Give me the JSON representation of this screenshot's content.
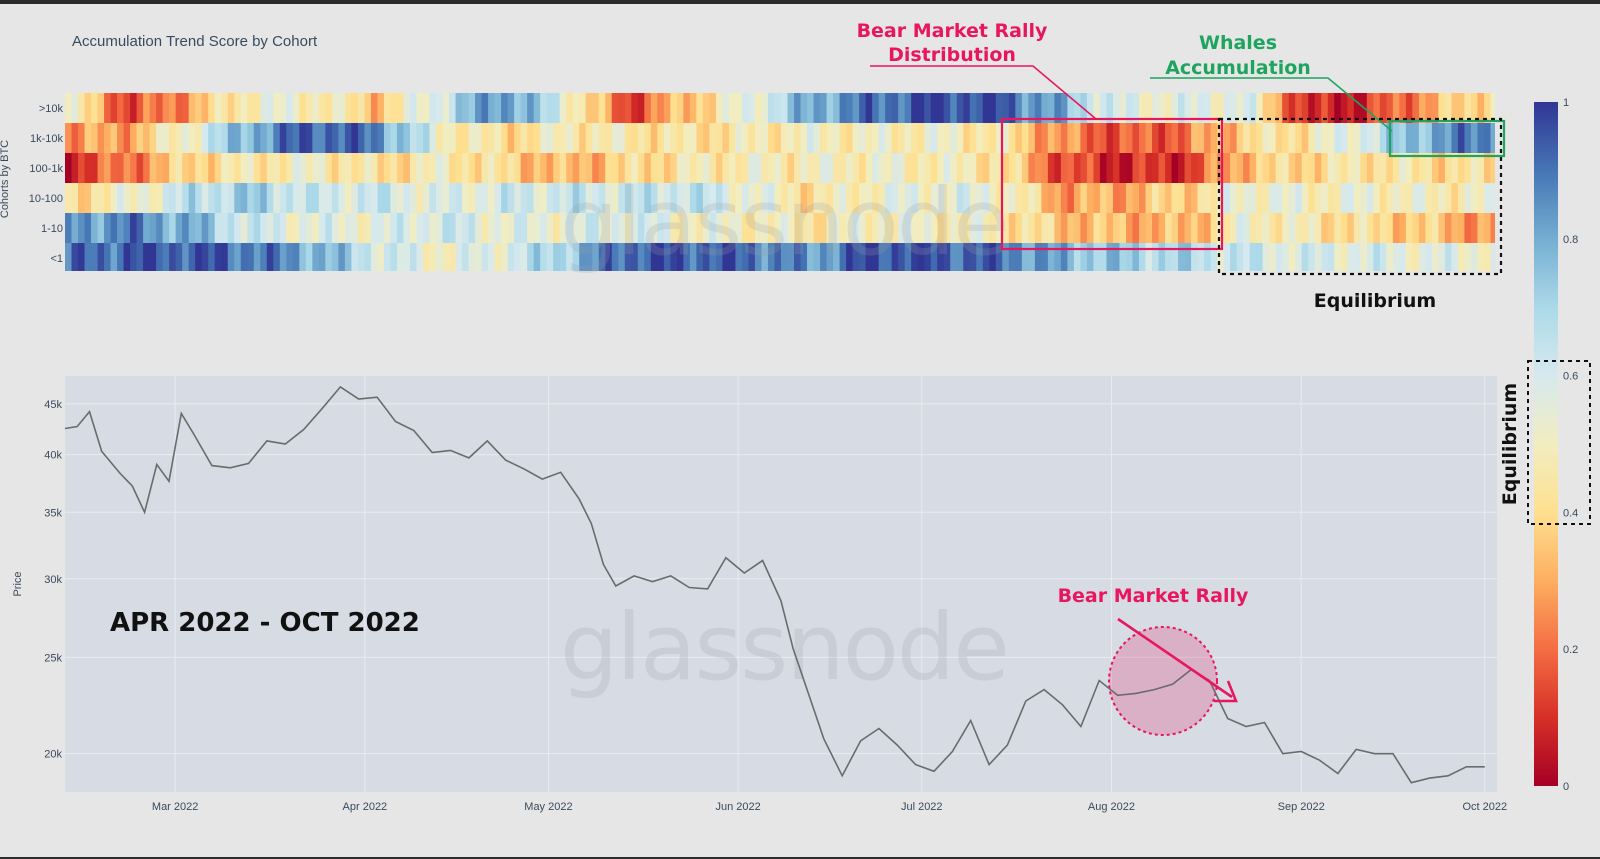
{
  "chart_data": [
    {
      "type": "heatmap",
      "title": "Accumulation Trend Score by Cohort",
      "ylabel": "Cohorts by BTC",
      "cohorts": [
        ">10k",
        "1k-10k",
        "100-1k",
        "10-100",
        "1-10",
        "<1"
      ],
      "x_range": [
        "2022-02-11",
        "2022-10-01"
      ],
      "colorbar": {
        "range": [
          0,
          1
        ],
        "ticks": [
          "1",
          "0.8",
          "0.6",
          "0.4",
          "0.2",
          "0"
        ],
        "label": "Equilibrium"
      },
      "scores": {
        ">10k": [
          0.5,
          0.12,
          0.3,
          0.52,
          0.5,
          0.35,
          0.62,
          0.88,
          0.58,
          0.12,
          0.35,
          0.55,
          0.8,
          0.9,
          0.98,
          0.96,
          0.78,
          0.55,
          0.55,
          0.58,
          0.05,
          0.1,
          0.3,
          0.45
        ],
        "1k-10k": [
          0.25,
          0.3,
          0.55,
          0.82,
          0.95,
          0.88,
          0.52,
          0.4,
          0.48,
          0.45,
          0.42,
          0.45,
          0.5,
          0.48,
          0.5,
          0.45,
          0.25,
          0.15,
          0.2,
          0.4,
          0.45,
          0.62,
          0.82,
          0.9
        ],
        "100-1k": [
          0.1,
          0.22,
          0.4,
          0.45,
          0.5,
          0.4,
          0.48,
          0.4,
          0.3,
          0.38,
          0.45,
          0.48,
          0.48,
          0.5,
          0.48,
          0.45,
          0.15,
          0.08,
          0.1,
          0.35,
          0.4,
          0.45,
          0.42,
          0.4
        ],
        "10-100": [
          0.4,
          0.5,
          0.65,
          0.72,
          0.6,
          0.62,
          0.55,
          0.6,
          0.62,
          0.62,
          0.65,
          0.55,
          0.42,
          0.52,
          0.55,
          0.55,
          0.28,
          0.3,
          0.38,
          0.55,
          0.5,
          0.52,
          0.48,
          0.5
        ],
        "1-10": [
          0.82,
          0.88,
          0.78,
          0.6,
          0.55,
          0.55,
          0.62,
          0.55,
          0.55,
          0.6,
          0.52,
          0.5,
          0.45,
          0.52,
          0.5,
          0.48,
          0.35,
          0.32,
          0.3,
          0.52,
          0.45,
          0.4,
          0.35,
          0.25
        ],
        "<1": [
          0.88,
          0.95,
          0.95,
          0.9,
          0.8,
          0.62,
          0.52,
          0.58,
          0.72,
          0.95,
          0.95,
          0.92,
          0.82,
          0.98,
          0.95,
          0.92,
          0.78,
          0.72,
          0.68,
          0.62,
          0.58,
          0.58,
          0.55,
          0.55
        ]
      }
    },
    {
      "type": "line",
      "ylabel": "Price",
      "x_tick_labels": [
        "Mar 2022",
        "Apr 2022",
        "May 2022",
        "Jun 2022",
        "Jul 2022",
        "Aug 2022",
        "Sep 2022",
        "Oct 2022"
      ],
      "y_scale": "log",
      "y_tick_labels": [
        "45k",
        "40k",
        "35k",
        "30k",
        "25k",
        "20k"
      ],
      "y_ticks": [
        45000,
        40000,
        35000,
        30000,
        25000,
        20000
      ],
      "ylim": [
        18300,
        48000
      ],
      "x": [
        "2022-02-11",
        "2022-02-13",
        "2022-02-15",
        "2022-02-17",
        "2022-02-20",
        "2022-02-22",
        "2022-02-24",
        "2022-02-26",
        "2022-02-28",
        "2022-03-02",
        "2022-03-04",
        "2022-03-07",
        "2022-03-10",
        "2022-03-13",
        "2022-03-16",
        "2022-03-19",
        "2022-03-22",
        "2022-03-25",
        "2022-03-28",
        "2022-03-31",
        "2022-04-03",
        "2022-04-06",
        "2022-04-09",
        "2022-04-12",
        "2022-04-15",
        "2022-04-18",
        "2022-04-21",
        "2022-04-24",
        "2022-04-27",
        "2022-04-30",
        "2022-05-03",
        "2022-05-06",
        "2022-05-08",
        "2022-05-10",
        "2022-05-12",
        "2022-05-15",
        "2022-05-18",
        "2022-05-21",
        "2022-05-24",
        "2022-05-27",
        "2022-05-30",
        "2022-06-02",
        "2022-06-05",
        "2022-06-08",
        "2022-06-10",
        "2022-06-13",
        "2022-06-15",
        "2022-06-18",
        "2022-06-21",
        "2022-06-24",
        "2022-06-27",
        "2022-06-30",
        "2022-07-03",
        "2022-07-06",
        "2022-07-09",
        "2022-07-12",
        "2022-07-15",
        "2022-07-18",
        "2022-07-21",
        "2022-07-24",
        "2022-07-27",
        "2022-07-30",
        "2022-08-02",
        "2022-08-05",
        "2022-08-08",
        "2022-08-11",
        "2022-08-14",
        "2022-08-17",
        "2022-08-20",
        "2022-08-23",
        "2022-08-26",
        "2022-08-29",
        "2022-09-01",
        "2022-09-04",
        "2022-09-07",
        "2022-09-10",
        "2022-09-13",
        "2022-09-16",
        "2022-09-19",
        "2022-09-22",
        "2022-09-25",
        "2022-09-28",
        "2022-10-01"
      ],
      "y": [
        42500,
        42700,
        44200,
        40300,
        38300,
        37200,
        35000,
        39100,
        37600,
        44000,
        42000,
        39000,
        38800,
        39200,
        41300,
        41000,
        42400,
        44500,
        46800,
        45500,
        45700,
        43200,
        42300,
        40200,
        40400,
        39700,
        41300,
        39500,
        38700,
        37800,
        38400,
        36100,
        34100,
        31000,
        29500,
        30200,
        29800,
        30200,
        29400,
        29300,
        31500,
        30400,
        31300,
        28500,
        25500,
        22500,
        20700,
        19000,
        20600,
        21200,
        20400,
        19500,
        19200,
        20100,
        21600,
        19500,
        20400,
        22600,
        23200,
        22400,
        21300,
        23700,
        22900,
        23000,
        23200,
        23500,
        24300,
        23700,
        21700,
        21300,
        21500,
        20000,
        20100,
        19700,
        19100,
        20200,
        20000,
        20000,
        18700,
        18900,
        19000,
        19400,
        19400
      ]
    }
  ],
  "annotations": {
    "bear_rally_distribution": [
      "Bear Market Rally",
      "Distribution"
    ],
    "whales_accumulation": [
      "Whales",
      "Accumulation"
    ],
    "equilibrium": "Equilibrium",
    "equilibrium_vertical": "Equilibrium",
    "bear_market_rally": "Bear Market Rally",
    "period": "APR 2022 - OCT 2022"
  },
  "watermark": "glassnode",
  "colors": {
    "red": "#e8175d",
    "green": "#1fa45f",
    "price_line": "#6b6b6b",
    "plot_bg": "#d6dbe4"
  }
}
